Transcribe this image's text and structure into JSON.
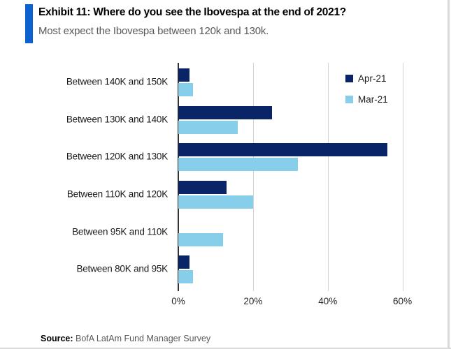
{
  "header": {
    "exhibit_title": "Exhibit 11: Where do you see the Ibovespa at the end of 2021?",
    "subtitle": "Most expect the Ibovespa between 120k and 130k.",
    "accent_color": "#0d62d0"
  },
  "chart_data": {
    "type": "bar",
    "orientation": "horizontal",
    "title": "Exhibit 11: Where do you see the Ibovespa at the end of 2021?",
    "categories": [
      "Between 140K and 150K",
      "Between 130K and 140K",
      "Between 120K and 130K",
      "Between 110K and 120K",
      "Between 95K and 110K",
      "Between 80K and 95K"
    ],
    "series": [
      {
        "name": "Apr-21",
        "color": "#0a2468",
        "values": [
          3,
          25,
          56,
          13,
          0,
          3
        ]
      },
      {
        "name": "Mar-21",
        "color": "#87ceeb",
        "values": [
          4,
          16,
          32,
          20,
          12,
          4
        ]
      }
    ],
    "xlabel": "",
    "ylabel": "",
    "x_ticks": [
      "0%",
      "20%",
      "40%",
      "60%"
    ],
    "x_tick_values": [
      0,
      20,
      40,
      60
    ],
    "xlim": [
      0,
      70
    ],
    "grid": "vertical",
    "legend_position": "top-right",
    "unit": "percent"
  },
  "footer": {
    "source_label": "Source:",
    "source_text": " BofA LatAm Fund Manager Survey"
  }
}
